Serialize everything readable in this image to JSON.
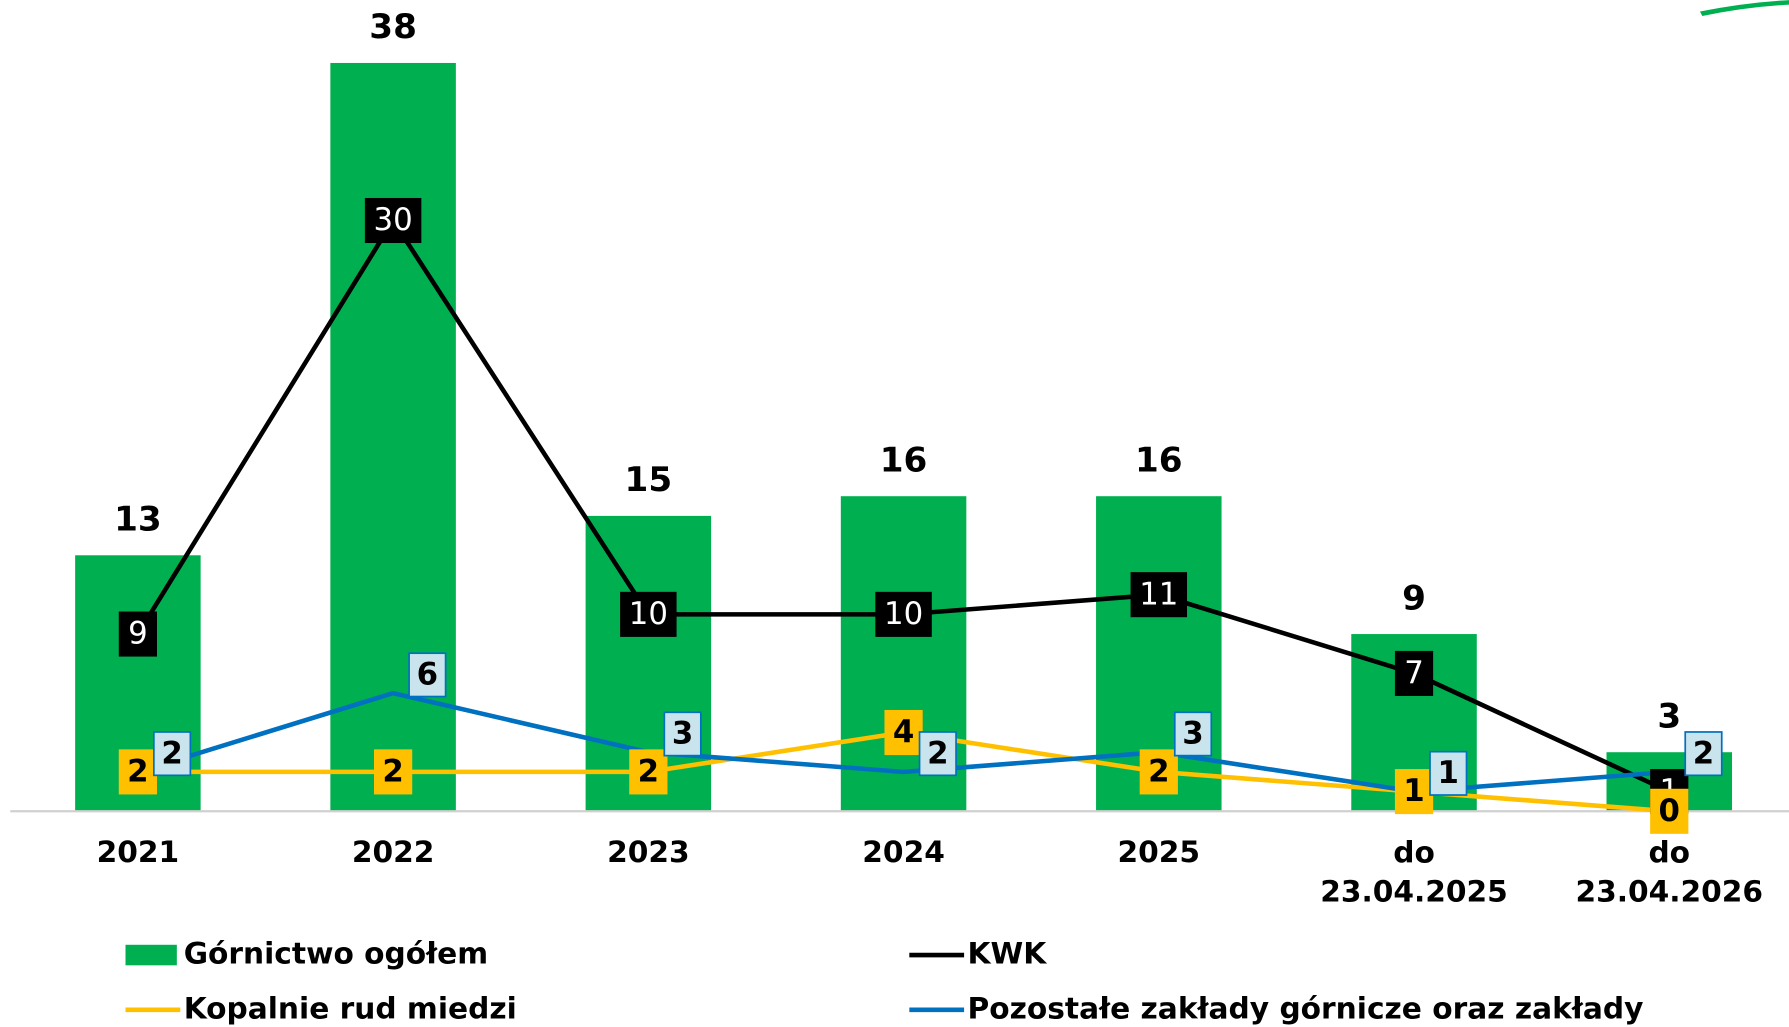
{
  "chart_data": {
    "type": "bar-line",
    "categories": [
      "2021",
      "2022",
      "2023",
      "2024",
      "2025",
      "do 23.04.2025",
      "do 23.04.2026"
    ],
    "ylim": [
      0,
      40
    ],
    "series": [
      {
        "name": "Górnictwo ogółem",
        "type": "bar",
        "color": "#00b050",
        "values": [
          13,
          38,
          15,
          16,
          16,
          9,
          3
        ]
      },
      {
        "name": "KWK",
        "type": "line",
        "color": "#000000",
        "values": [
          9,
          30,
          10,
          10,
          11,
          7,
          1
        ]
      },
      {
        "name": "Kopalnie rud miedzi",
        "type": "line",
        "color": "#ffc000",
        "values": [
          2,
          2,
          2,
          4,
          2,
          1,
          0
        ]
      },
      {
        "name": "Pozostałe zakłady górnicze oraz zakłady",
        "type": "line",
        "color": "#0070c0",
        "values": [
          2,
          6,
          3,
          2,
          3,
          1,
          2
        ]
      }
    ]
  }
}
